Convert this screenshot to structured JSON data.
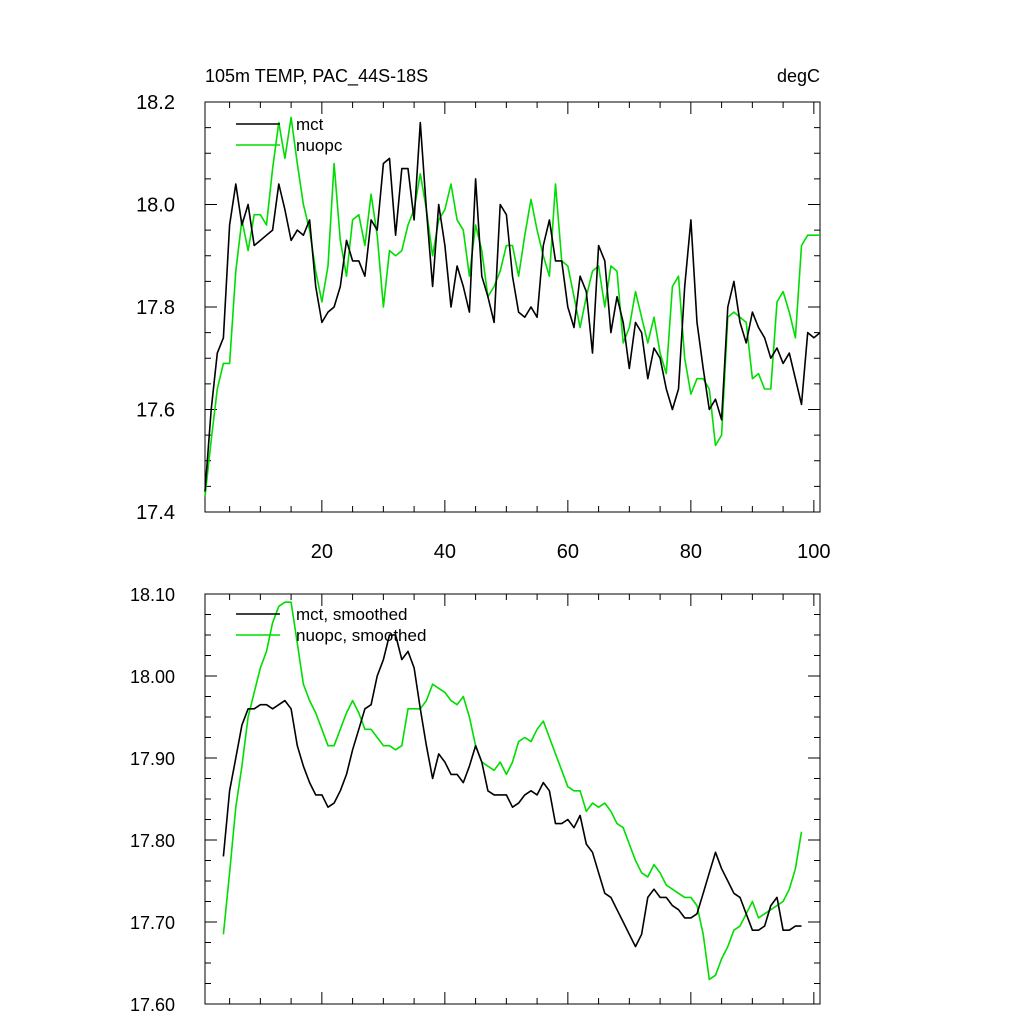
{
  "colors": {
    "mct": "#000000",
    "nuopc": "#00dd00"
  },
  "chart_data": [
    {
      "type": "line",
      "title": "105m TEMP, PAC_44S-18S",
      "units": "degC",
      "xlabel": "",
      "ylabel": "",
      "xlim": [
        1,
        101
      ],
      "ylim": [
        17.4,
        18.2
      ],
      "grid": false,
      "legend": "top-left",
      "x_ticks": [
        20,
        40,
        60,
        80,
        100
      ],
      "y_ticks": [
        "17.4",
        "17.6",
        "17.8",
        "18.0",
        "18.2"
      ],
      "series": [
        {
          "name": "mct",
          "x": [
            1,
            2,
            3,
            4,
            5,
            6,
            7,
            8,
            9,
            10,
            11,
            12,
            13,
            14,
            15,
            16,
            17,
            18,
            19,
            20,
            21,
            22,
            23,
            24,
            25,
            26,
            27,
            28,
            29,
            30,
            31,
            32,
            33,
            34,
            35,
            36,
            37,
            38,
            39,
            40,
            41,
            42,
            43,
            44,
            45,
            46,
            47,
            48,
            49,
            50,
            51,
            52,
            53,
            54,
            55,
            56,
            57,
            58,
            59,
            60,
            61,
            62,
            63,
            64,
            65,
            66,
            67,
            68,
            69,
            70,
            71,
            72,
            73,
            74,
            75,
            76,
            77,
            78,
            79,
            80,
            81,
            82,
            83,
            84,
            85,
            86,
            87,
            88,
            89,
            90,
            91,
            92,
            93,
            94,
            95,
            96,
            97,
            98,
            99,
            100,
            101
          ],
          "y": [
            17.44,
            17.6,
            17.71,
            17.74,
            17.96,
            18.04,
            17.96,
            18.0,
            17.92,
            17.93,
            17.94,
            17.95,
            18.04,
            17.99,
            17.93,
            17.95,
            17.94,
            17.97,
            17.84,
            17.77,
            17.79,
            17.8,
            17.84,
            17.93,
            17.89,
            17.89,
            17.86,
            17.97,
            17.95,
            18.08,
            18.09,
            17.94,
            18.07,
            18.07,
            17.97,
            18.16,
            17.99,
            17.84,
            18.0,
            17.92,
            17.8,
            17.88,
            17.84,
            17.79,
            18.05,
            17.86,
            17.82,
            17.77,
            18.0,
            17.98,
            17.86,
            17.79,
            17.78,
            17.8,
            17.78,
            17.92,
            17.97,
            17.89,
            17.89,
            17.8,
            17.76,
            17.86,
            17.83,
            17.71,
            17.92,
            17.89,
            17.75,
            17.82,
            17.77,
            17.68,
            17.77,
            17.75,
            17.66,
            17.72,
            17.7,
            17.64,
            17.6,
            17.64,
            17.84,
            17.97,
            17.77,
            17.68,
            17.6,
            17.62,
            17.58,
            17.8,
            17.85,
            17.77,
            17.73,
            17.79,
            17.76,
            17.74,
            17.7,
            17.72,
            17.69,
            17.71,
            17.66,
            17.61,
            17.75,
            17.74,
            17.75
          ]
        },
        {
          "name": "nuopc",
          "x": [
            1,
            2,
            3,
            4,
            5,
            6,
            7,
            8,
            9,
            10,
            11,
            12,
            13,
            14,
            15,
            16,
            17,
            18,
            19,
            20,
            21,
            22,
            23,
            24,
            25,
            26,
            27,
            28,
            29,
            30,
            31,
            32,
            33,
            34,
            35,
            36,
            37,
            38,
            39,
            40,
            41,
            42,
            43,
            44,
            45,
            46,
            47,
            48,
            49,
            50,
            51,
            52,
            53,
            54,
            55,
            56,
            57,
            58,
            59,
            60,
            61,
            62,
            63,
            64,
            65,
            66,
            67,
            68,
            69,
            70,
            71,
            72,
            73,
            74,
            75,
            76,
            77,
            78,
            79,
            80,
            81,
            82,
            83,
            84,
            85,
            86,
            87,
            88,
            89,
            90,
            91,
            92,
            93,
            94,
            95,
            96,
            97,
            98,
            99,
            100,
            101
          ],
          "y": [
            17.43,
            17.54,
            17.64,
            17.69,
            17.69,
            17.87,
            17.97,
            17.91,
            17.98,
            17.98,
            17.96,
            18.07,
            18.16,
            18.09,
            18.17,
            18.08,
            18.0,
            17.95,
            17.87,
            17.81,
            17.88,
            18.08,
            17.93,
            17.86,
            17.97,
            17.98,
            17.92,
            18.02,
            17.94,
            17.8,
            17.91,
            17.9,
            17.91,
            17.96,
            17.99,
            18.06,
            17.99,
            17.9,
            17.97,
            17.99,
            18.04,
            17.97,
            17.95,
            17.86,
            17.96,
            17.91,
            17.82,
            17.84,
            17.87,
            17.92,
            17.92,
            17.86,
            17.94,
            18.01,
            17.95,
            17.9,
            17.86,
            18.04,
            17.89,
            17.88,
            17.82,
            17.76,
            17.82,
            17.87,
            17.88,
            17.8,
            17.88,
            17.87,
            17.73,
            17.76,
            17.83,
            17.78,
            17.73,
            17.78,
            17.71,
            17.67,
            17.84,
            17.86,
            17.7,
            17.63,
            17.66,
            17.66,
            17.64,
            17.53,
            17.55,
            17.78,
            17.79,
            17.78,
            17.77,
            17.66,
            17.67,
            17.64,
            17.64,
            17.81,
            17.83,
            17.79,
            17.74,
            17.92,
            17.94,
            17.94,
            17.94
          ]
        }
      ]
    },
    {
      "type": "line",
      "title": "",
      "xlabel": "",
      "ylabel": "",
      "xlim": [
        1,
        101
      ],
      "ylim": [
        17.6,
        18.1
      ],
      "grid": false,
      "legend": "top-left",
      "x_ticks": [
        20,
        40,
        60,
        80,
        100
      ],
      "y_ticks": [
        "17.60",
        "17.70",
        "17.80",
        "17.90",
        "18.00",
        "18.10"
      ],
      "series": [
        {
          "name": "mct, smoothed",
          "x": [
            4,
            5,
            6,
            7,
            8,
            9,
            10,
            11,
            12,
            13,
            14,
            15,
            16,
            17,
            18,
            19,
            20,
            21,
            22,
            23,
            24,
            25,
            26,
            27,
            28,
            29,
            30,
            31,
            32,
            33,
            34,
            35,
            36,
            37,
            38,
            39,
            40,
            41,
            42,
            43,
            44,
            45,
            46,
            47,
            48,
            49,
            50,
            51,
            52,
            53,
            54,
            55,
            56,
            57,
            58,
            59,
            60,
            61,
            62,
            63,
            64,
            65,
            66,
            67,
            68,
            69,
            70,
            71,
            72,
            73,
            74,
            75,
            76,
            77,
            78,
            79,
            80,
            81,
            82,
            83,
            84,
            85,
            86,
            87,
            88,
            89,
            90,
            91,
            92,
            93,
            94,
            95,
            96,
            97,
            98
          ],
          "y": [
            17.78,
            17.86,
            17.9,
            17.94,
            17.96,
            17.96,
            17.965,
            17.965,
            17.96,
            17.965,
            17.97,
            17.96,
            17.915,
            17.89,
            17.87,
            17.855,
            17.855,
            17.84,
            17.845,
            17.86,
            17.88,
            17.91,
            17.935,
            17.96,
            17.965,
            18.0,
            18.02,
            18.05,
            18.05,
            18.02,
            18.03,
            18.01,
            17.96,
            17.915,
            17.875,
            17.905,
            17.895,
            17.88,
            17.88,
            17.87,
            17.89,
            17.915,
            17.895,
            17.86,
            17.855,
            17.855,
            17.855,
            17.84,
            17.845,
            17.855,
            17.86,
            17.855,
            17.87,
            17.86,
            17.82,
            17.82,
            17.825,
            17.815,
            17.83,
            17.795,
            17.785,
            17.76,
            17.735,
            17.73,
            17.715,
            17.7,
            17.685,
            17.67,
            17.685,
            17.73,
            17.74,
            17.73,
            17.73,
            17.72,
            17.715,
            17.705,
            17.705,
            17.71,
            17.735,
            17.76,
            17.785,
            17.765,
            17.75,
            17.735,
            17.73,
            17.71,
            17.69,
            17.69,
            17.695,
            17.72,
            17.73,
            17.69,
            17.69,
            17.695,
            17.695
          ]
        },
        {
          "name": "nuopc, smoothed",
          "x": [
            4,
            5,
            6,
            7,
            8,
            9,
            10,
            11,
            12,
            13,
            14,
            15,
            16,
            17,
            18,
            19,
            20,
            21,
            22,
            23,
            24,
            25,
            26,
            27,
            28,
            29,
            30,
            31,
            32,
            33,
            34,
            35,
            36,
            37,
            38,
            39,
            40,
            41,
            42,
            43,
            44,
            45,
            46,
            47,
            48,
            49,
            50,
            51,
            52,
            53,
            54,
            55,
            56,
            57,
            58,
            59,
            60,
            61,
            62,
            63,
            64,
            65,
            66,
            67,
            68,
            69,
            70,
            71,
            72,
            73,
            74,
            75,
            76,
            77,
            78,
            79,
            80,
            81,
            82,
            83,
            84,
            85,
            86,
            87,
            88,
            89,
            90,
            91,
            92,
            93,
            94,
            95,
            96,
            97,
            98
          ],
          "y": [
            17.685,
            17.76,
            17.84,
            17.89,
            17.95,
            17.98,
            18.01,
            18.03,
            18.065,
            18.085,
            18.09,
            18.09,
            18.04,
            17.99,
            17.97,
            17.955,
            17.935,
            17.915,
            17.915,
            17.935,
            17.955,
            17.97,
            17.955,
            17.935,
            17.935,
            17.925,
            17.915,
            17.915,
            17.91,
            17.915,
            17.96,
            17.96,
            17.96,
            17.97,
            17.99,
            17.985,
            17.98,
            17.97,
            17.965,
            17.975,
            17.95,
            17.915,
            17.895,
            17.89,
            17.885,
            17.895,
            17.88,
            17.895,
            17.92,
            17.925,
            17.92,
            17.935,
            17.945,
            17.925,
            17.905,
            17.885,
            17.865,
            17.86,
            17.86,
            17.835,
            17.845,
            17.84,
            17.845,
            17.835,
            17.82,
            17.815,
            17.795,
            17.775,
            17.76,
            17.755,
            17.77,
            17.76,
            17.745,
            17.74,
            17.735,
            17.73,
            17.73,
            17.72,
            17.685,
            17.63,
            17.635,
            17.655,
            17.67,
            17.69,
            17.695,
            17.71,
            17.725,
            17.705,
            17.71,
            17.715,
            17.72,
            17.725,
            17.74,
            17.765,
            17.81
          ]
        }
      ]
    }
  ]
}
